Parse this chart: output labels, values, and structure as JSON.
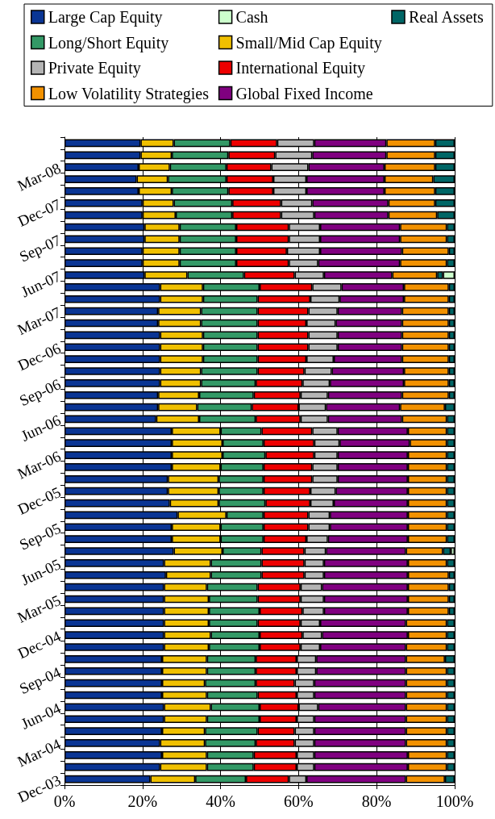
{
  "chart_data": {
    "type": "bar",
    "orientation": "horizontal",
    "stacked": true,
    "legend": "top",
    "grid": "x",
    "categories": [
      null,
      null,
      "Mar-08",
      null,
      null,
      "Dec-07",
      null,
      null,
      "Sep-07",
      null,
      null,
      "Jun-07",
      null,
      null,
      "Mar-07",
      null,
      null,
      "Dec-06",
      null,
      null,
      "Sep-06",
      null,
      null,
      "Jun-06",
      null,
      null,
      "Mar-06",
      null,
      null,
      "Dec-05",
      null,
      null,
      "Sep-05",
      null,
      null,
      "Jun-05",
      null,
      null,
      "Mar-05",
      null,
      null,
      "Dec-04",
      null,
      null,
      "Sep-04",
      null,
      null,
      "Jun-04",
      null,
      null,
      "Mar-04",
      null,
      null,
      "Dec-03"
    ],
    "xlim": [
      0,
      100
    ],
    "xticks": [
      {
        "value": 0,
        "label": "0%"
      },
      {
        "value": 20,
        "label": "20%"
      },
      {
        "value": 40,
        "label": "40%"
      },
      {
        "value": 60,
        "label": "60%"
      },
      {
        "value": 80,
        "label": "80%"
      },
      {
        "value": 100,
        "label": "100%"
      }
    ],
    "series": [
      {
        "name": "Large Cap Equity",
        "color": "#0a3594",
        "values": [
          19.5,
          19.5,
          19,
          18.5,
          19,
          20,
          20,
          20.5,
          20.5,
          20,
          20,
          20.5,
          24.5,
          24.5,
          24,
          24,
          24.5,
          24.5,
          24.5,
          24.5,
          24.5,
          24,
          24,
          23.5,
          27.5,
          27.5,
          27.5,
          27.5,
          26.5,
          26.5,
          27,
          29,
          27.5,
          27.5,
          28,
          25.5,
          26,
          25.5,
          25.5,
          25.5,
          25.5,
          25.5,
          25.5,
          25,
          25,
          25,
          25,
          25.5,
          25.5,
          25,
          24.5,
          25,
          24.5,
          22
        ]
      },
      {
        "name": "Small/Mid Cap Equity",
        "color": "#f0c000",
        "values": [
          8.5,
          8,
          8,
          8,
          8.5,
          8,
          8.5,
          9,
          9,
          9.5,
          9.5,
          11,
          11,
          11,
          11,
          11,
          11,
          11,
          11,
          10.5,
          10.5,
          10.5,
          10,
          11,
          12.5,
          13,
          13,
          12.5,
          13,
          13,
          12.5,
          12.5,
          12.5,
          12.5,
          12.5,
          12,
          11.5,
          11,
          11.5,
          11.5,
          11.5,
          12,
          11.5,
          11.5,
          11.5,
          11,
          11.5,
          12,
          11,
          11,
          11.5,
          11.5,
          12,
          11.5
        ]
      },
      {
        "name": "Long/Short Equity",
        "color": "#339966",
        "values": [
          14.5,
          14.5,
          14.5,
          15,
          14.5,
          15,
          14.5,
          14.5,
          14.5,
          14.5,
          14.5,
          14.5,
          14.5,
          14,
          14.5,
          14.5,
          14,
          14,
          14,
          14.5,
          14,
          14,
          14,
          14.5,
          10.5,
          10.5,
          11,
          11,
          11.5,
          11.5,
          12,
          9.5,
          11,
          11,
          10,
          13,
          13,
          13,
          12.5,
          13,
          12.5,
          12.5,
          13,
          12.5,
          12.5,
          13,
          13,
          12.5,
          13.5,
          13.5,
          13,
          12,
          12,
          13
        ]
      },
      {
        "name": "International Equity",
        "color": "#ee0000",
        "values": [
          12,
          12,
          11.5,
          12,
          11.5,
          12.5,
          12.5,
          13.5,
          13.5,
          13,
          13.5,
          13,
          13.5,
          13.5,
          13,
          12.5,
          13,
          13,
          12.5,
          12,
          12,
          12,
          12,
          11.5,
          13,
          13,
          12.5,
          12.5,
          12.5,
          12,
          11.5,
          11.5,
          11.5,
          11,
          11,
          11,
          11,
          11,
          11,
          11,
          11,
          11,
          10.5,
          10.5,
          10.5,
          10,
          10,
          10,
          9.5,
          9.5,
          10,
          11,
          11,
          11
        ]
      },
      {
        "name": "Private Equity",
        "color": "#b4b4b4",
        "values": [
          9.5,
          9.5,
          9.5,
          8.5,
          8.5,
          8,
          8.5,
          8,
          8,
          8.5,
          7.5,
          7.5,
          7.5,
          7.5,
          7.5,
          7.5,
          7.5,
          7.5,
          7,
          7,
          7,
          7,
          7,
          7,
          6.5,
          6.5,
          6,
          6.5,
          6.5,
          6.5,
          6,
          5.5,
          5.5,
          5.5,
          5.5,
          5,
          5,
          5.5,
          6,
          5.5,
          5,
          5,
          5,
          5,
          5,
          5,
          4.5,
          5,
          4.5,
          5,
          5,
          4.5,
          4.5,
          4.5
        ]
      },
      {
        "name": "Global Fixed Income",
        "color": "#800080",
        "values": [
          18.5,
          19,
          19.5,
          20,
          20,
          19.5,
          19,
          20.5,
          20.5,
          21,
          21,
          17.5,
          16,
          16.5,
          16.5,
          17,
          16.5,
          16.5,
          17.5,
          18.5,
          19,
          19,
          19,
          19,
          18,
          18,
          18,
          18,
          18,
          18.5,
          19,
          20,
          20,
          20.5,
          20.5,
          21.5,
          21.5,
          22,
          21.5,
          21.5,
          22,
          22,
          22,
          23,
          23,
          23.5,
          23.5,
          22.5,
          23.5,
          23.5,
          23.5,
          24,
          24,
          25.5
        ]
      },
      {
        "name": "Low Volatility Strategies",
        "color": "#f29100",
        "values": [
          12.5,
          12.5,
          13,
          12.5,
          13,
          12,
          12.5,
          12,
          12,
          12,
          12,
          11.5,
          11.5,
          11.5,
          12,
          12,
          12,
          12,
          12,
          11.5,
          11.5,
          12,
          11.5,
          11.5,
          10,
          9.5,
          10,
          10,
          10,
          10,
          10,
          10,
          10,
          10,
          9.5,
          10,
          10.5,
          10.5,
          10.5,
          10.5,
          10.5,
          10,
          10.5,
          10,
          10.5,
          10.5,
          10.5,
          10.5,
          10.5,
          10.5,
          10.5,
          10,
          10,
          10
        ]
      },
      {
        "name": "Real Assets",
        "color": "#006666",
        "values": [
          5,
          5,
          5,
          5.5,
          5,
          5,
          4.5,
          2,
          2,
          1.5,
          2,
          1.5,
          1.5,
          1.5,
          1.5,
          1.5,
          1.5,
          1.5,
          1.5,
          1.5,
          1.5,
          1.5,
          2.5,
          2,
          2,
          2,
          2,
          2,
          2,
          2,
          2,
          2,
          2,
          2,
          2,
          2,
          1.5,
          1.5,
          1.5,
          1.5,
          2,
          2,
          2,
          2.5,
          2,
          2,
          2,
          2,
          2,
          2,
          2,
          2,
          2,
          2.5
        ]
      },
      {
        "name": "Cash",
        "color": "#ccffcc",
        "values": [
          null,
          null,
          null,
          null,
          null,
          null,
          null,
          null,
          null,
          null,
          null,
          3,
          null,
          null,
          null,
          null,
          null,
          null,
          null,
          null,
          null,
          null,
          null,
          null,
          null,
          null,
          null,
          null,
          null,
          null,
          null,
          null,
          null,
          null,
          1,
          null,
          null,
          null,
          null,
          null,
          null,
          null,
          null,
          null,
          null,
          null,
          null,
          null,
          null,
          null,
          null,
          null,
          null,
          null
        ]
      }
    ]
  }
}
